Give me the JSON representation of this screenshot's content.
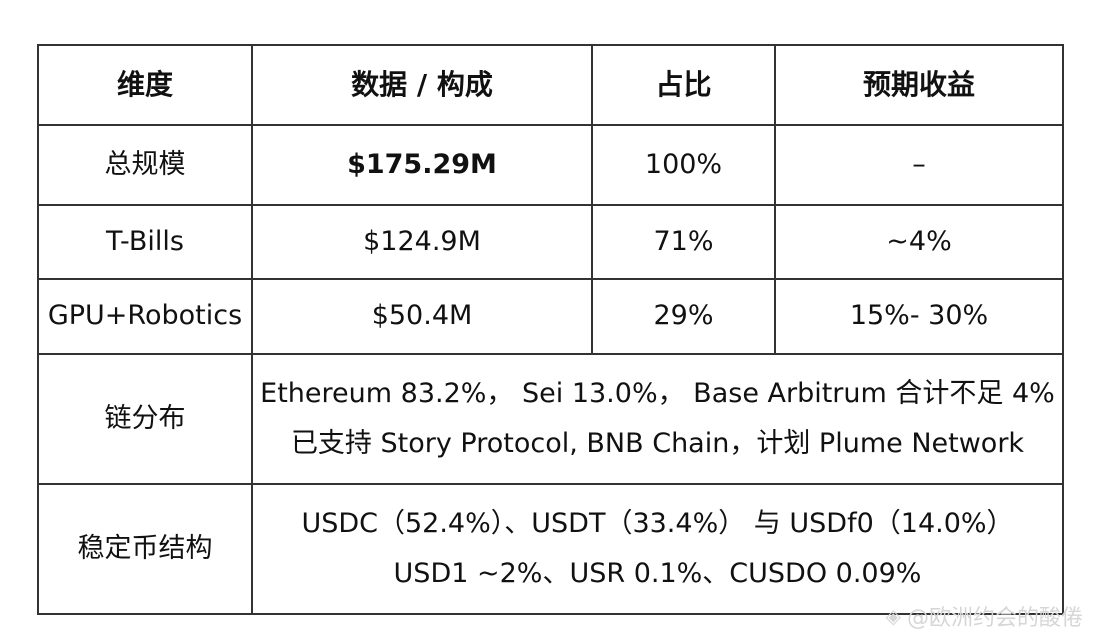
{
  "table": {
    "headers": [
      "维度",
      "数据 / 构成",
      "占比",
      "预期收益"
    ],
    "rows": [
      {
        "dimension": "总规模",
        "data": "$175.29M",
        "share": "100%",
        "yield": "–"
      },
      {
        "dimension": "T-Bills",
        "data": "$124.9M",
        "share": "71%",
        "yield": "~4%"
      },
      {
        "dimension": "GPU+Robotics",
        "data": "$50.4M",
        "share": "29%",
        "yield": "15%- 30%"
      }
    ],
    "chain": {
      "dimension": "链分布",
      "line1": "Ethereum 83.2%， Sei 13.0%， Base Arbitrum 合计不足 4%",
      "line2": "已支持 Story Protocol, BNB Chain，计划 Plume Network"
    },
    "stablecoin": {
      "dimension": "稳定币结构",
      "line1": "USDC（52.4%）、USDT（33.4%） 与 USDf0（14.0%）",
      "line2": "USD1 ~2%、USR 0.1%、CUSDO 0.09%"
    }
  },
  "watermark": {
    "icon": "diamond-logo-icon",
    "text": "@欧洲约会的酸倦"
  }
}
